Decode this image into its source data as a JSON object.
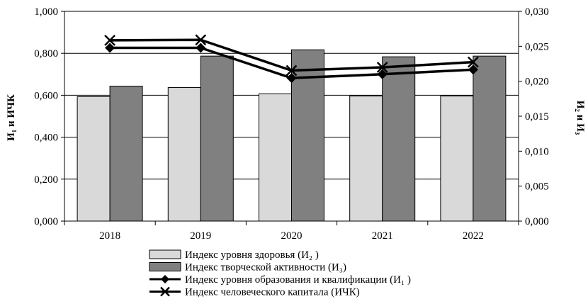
{
  "chart_data": {
    "type": "bar",
    "categories": [
      "2018",
      "2019",
      "2020",
      "2021",
      "2022"
    ],
    "left_axis": {
      "label": "И₁ и ИЧК",
      "ylim": [
        0,
        1.0
      ],
      "ticks": [
        "0,000",
        "0,200",
        "0,400",
        "0,600",
        "0,800",
        "1,000"
      ]
    },
    "right_axis": {
      "label": "И₂ и И₃",
      "ylim": [
        0,
        0.03
      ],
      "ticks": [
        "0,000",
        "0,005",
        "0,010",
        "0,015",
        "0,020",
        "0,025",
        "0,030"
      ]
    },
    "series": [
      {
        "name": "Индекс уровня здоровья (И₂ )",
        "kind": "bar",
        "axis": "right",
        "color": "#d9d9d9",
        "values": [
          0.0178,
          0.0191,
          0.0182,
          0.0179,
          0.0179
        ]
      },
      {
        "name": "Индекс творческой активности (И₃)",
        "kind": "bar",
        "axis": "right",
        "color": "#808080",
        "values": [
          0.0193,
          0.0236,
          0.0245,
          0.0235,
          0.0236
        ]
      },
      {
        "name": "Индекс уровня образования и квалификации (И₁ )",
        "kind": "line",
        "axis": "left",
        "marker": "diamond",
        "color": "#000000",
        "values": [
          0.826,
          0.826,
          0.682,
          0.7,
          0.722
        ]
      },
      {
        "name": "Индекс человеческого капитала (ИЧК)",
        "kind": "line",
        "axis": "left",
        "marker": "x",
        "color": "#000000",
        "values": [
          0.862,
          0.864,
          0.718,
          0.733,
          0.758
        ]
      }
    ],
    "grid": true,
    "legend": "bottom"
  }
}
